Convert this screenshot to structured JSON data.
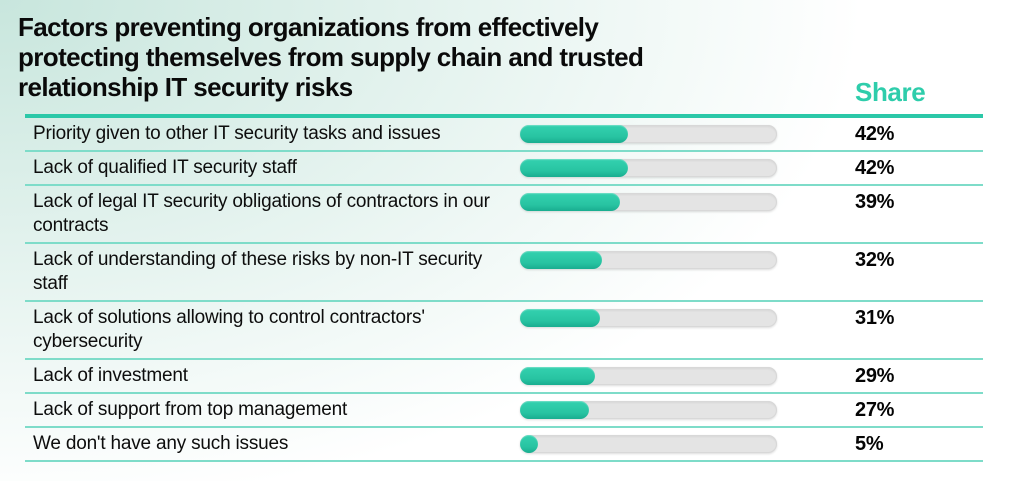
{
  "chart_data": {
    "type": "bar",
    "orientation": "horizontal",
    "title": "Factors preventing organizations from effectively protecting themselves from supply chain and trusted relationship IT security risks",
    "value_column_header": "Share",
    "xlim": [
      0,
      100
    ],
    "grid": false,
    "legend": false,
    "categories": [
      "Priority given to other IT security tasks and issues",
      "Lack of qualified IT security staff",
      "Lack of legal IT security obligations of contractors in our contracts",
      "Lack of understanding of these risks by non-IT security staff",
      "Lack of solutions allowing to control contractors' cybersecurity",
      "Lack of investment",
      "Lack of support from top management",
      "We don't have any such issues"
    ],
    "values": [
      42,
      42,
      39,
      32,
      31,
      29,
      27,
      5
    ],
    "value_labels": [
      "42%",
      "42%",
      "39%",
      "32%",
      "31%",
      "29%",
      "27%",
      "5%"
    ],
    "colors": {
      "accent_teal": "#2ECDAB",
      "header_rule": "#2BC8A8",
      "row_separator": "#7EDCC9",
      "bar_fill": "#28C4A2",
      "bar_track": "#E4E4E4",
      "text": "#0C0C0C",
      "background_tint": "#C8E6DD"
    }
  }
}
